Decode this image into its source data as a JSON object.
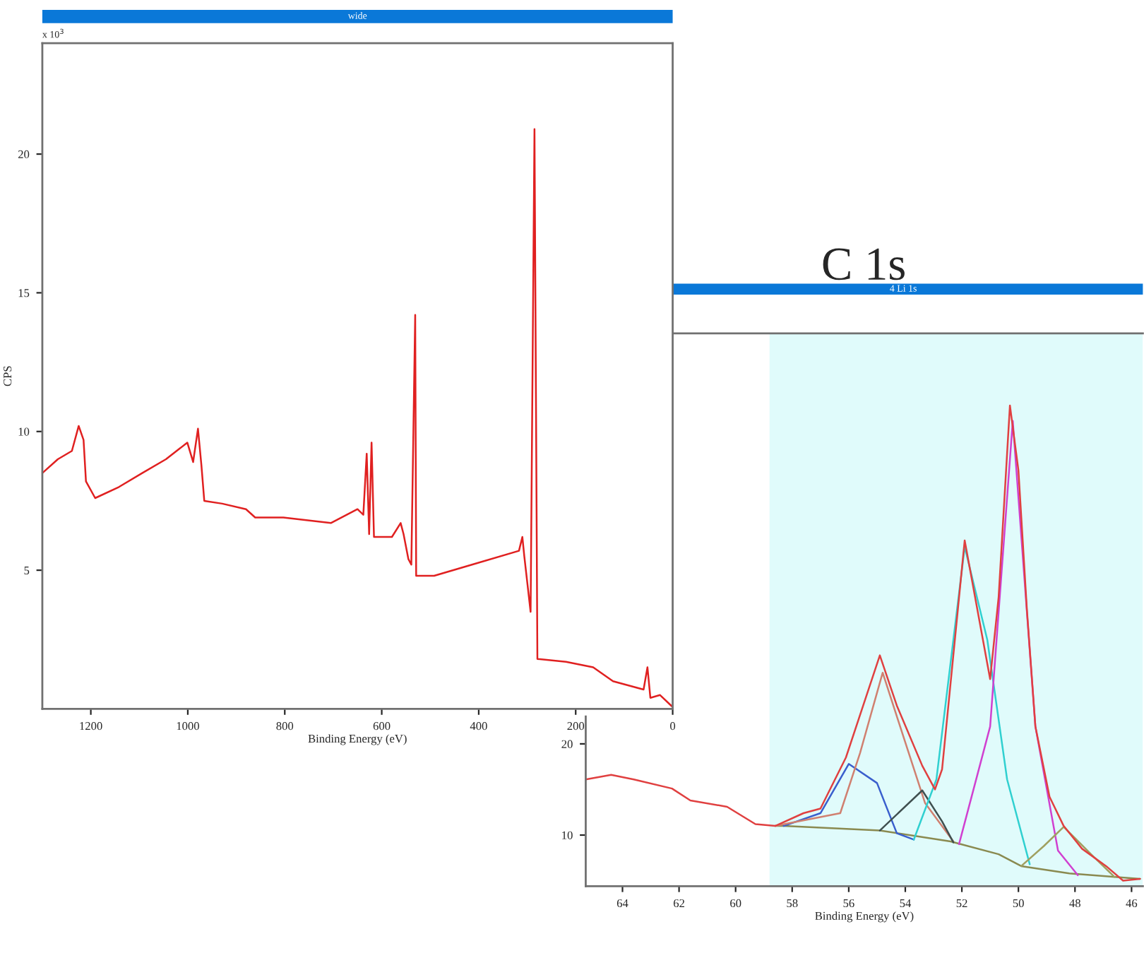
{
  "chart_data": [
    {
      "type": "line",
      "title": "wide",
      "xlabel": "Binding Energy (eV)",
      "ylabel": "CPS",
      "annotations": [
        "x 10$^{3}$"
      ],
      "grid": false,
      "legend": false,
      "line_style": "solid",
      "marker": "none",
      "xlim": [
        1300,
        0
      ],
      "xticks": [
        1200,
        1000,
        800,
        600,
        400,
        200,
        0
      ],
      "ylim": [
        0,
        24
      ],
      "yticks": [
        5,
        10,
        15,
        20
      ],
      "series": [
        {
          "color": "#e02020",
          "x": [
            1300,
            1268,
            1239,
            1225,
            1215,
            1210,
            1191,
            1142,
            1094,
            1045,
            1001,
            989,
            979,
            972,
            966,
            929,
            880,
            861,
            803,
            705,
            650,
            638,
            631,
            626,
            621,
            616,
            579,
            561,
            555,
            545,
            539,
            535,
            531,
            529,
            492,
            414,
            317,
            310,
            306,
            293,
            285,
            279,
            220,
            164,
            123,
            60,
            52,
            46,
            26,
            2
          ],
          "values": [
            8.5,
            9.0,
            9.3,
            10.2,
            9.7,
            8.2,
            7.6,
            8.0,
            8.5,
            9.0,
            9.6,
            8.9,
            10.1,
            8.8,
            7.5,
            7.4,
            7.2,
            6.9,
            6.9,
            6.7,
            7.2,
            7.0,
            9.2,
            6.3,
            9.6,
            6.2,
            6.2,
            6.7,
            6.3,
            5.4,
            5.2,
            9.7,
            14.2,
            4.8,
            4.8,
            5.2,
            5.7,
            6.2,
            5.5,
            3.5,
            20.9,
            1.8,
            1.7,
            1.5,
            1.0,
            0.7,
            1.5,
            0.4,
            0.5,
            0.1
          ]
        }
      ]
    },
    {
      "type": "line",
      "title": "4 Li 1s",
      "xlabel": "Binding Energy (eV)",
      "annotations": [
        "C 1s"
      ],
      "grid": false,
      "legend": false,
      "line_style": "solid",
      "marker": "none",
      "xlim": [
        65.3,
        45.6
      ],
      "xticks": [
        64,
        62,
        60,
        58,
        56,
        54,
        52,
        50,
        48,
        46
      ],
      "ylim": [
        4.4,
        65
      ],
      "yticks": [
        10,
        20
      ],
      "bands": [
        {
          "axis": "x",
          "from": 58.8,
          "to": 45.6,
          "color": "#e0fbfb"
        }
      ],
      "series": [
        {
          "color": "#8a8a50",
          "x": [
            58.6,
            58.3,
            54.9,
            52.4,
            50.7,
            49.9,
            48.2,
            45.7
          ],
          "values": [
            11.0,
            11.0,
            10.5,
            9.3,
            7.9,
            6.6,
            5.8,
            5.2
          ]
        },
        {
          "color": "#3a5fcd",
          "x": [
            58.3,
            57.0,
            56.0,
            55.0,
            54.3,
            53.7
          ],
          "values": [
            11.0,
            12.4,
            17.8,
            15.7,
            10.2,
            9.5
          ]
        },
        {
          "color": "#d08070",
          "x": [
            58.6,
            56.3,
            55.6,
            54.8,
            53.9,
            53.3,
            52.3
          ],
          "values": [
            11.0,
            12.4,
            19.0,
            27.8,
            19.2,
            13.5,
            9.3
          ]
        },
        {
          "color": "#405050",
          "x": [
            54.9,
            53.4,
            52.7,
            52.3
          ],
          "values": [
            10.5,
            14.9,
            11.5,
            9.2
          ]
        },
        {
          "color": "#30d0d0",
          "x": [
            53.7,
            52.9,
            51.9,
            51.1,
            50.4,
            49.6
          ],
          "values": [
            9.5,
            16.1,
            41.6,
            31.4,
            16.1,
            6.8
          ]
        },
        {
          "color": "#d040d0",
          "x": [
            52.1,
            51.0,
            50.2,
            49.4,
            48.6,
            47.9
          ],
          "values": [
            9.0,
            21.9,
            55.4,
            21.9,
            8.3,
            5.6
          ]
        },
        {
          "color": "#a0a060",
          "x": [
            49.9,
            49.1,
            48.4,
            47.4,
            46.6
          ],
          "values": [
            6.6,
            8.8,
            10.9,
            7.8,
            5.4
          ]
        },
        {
          "color": "#e04040",
          "x": [
            65.3,
            64.4,
            63.6,
            62.25,
            61.6,
            60.3,
            59.3,
            58.6,
            57.6,
            57.0,
            56.1,
            54.9,
            54.3,
            53.4,
            52.95,
            52.7,
            51.9,
            51.0,
            50.7,
            50.3,
            50.0,
            49.7,
            49.4,
            48.9,
            48.4,
            47.75,
            46.9,
            46.3,
            45.7
          ],
          "values": [
            16.1,
            16.6,
            16.1,
            15.1,
            13.8,
            13.1,
            11.2,
            11.0,
            12.4,
            12.9,
            18.5,
            29.7,
            24.2,
            17.6,
            15.0,
            17.2,
            42.3,
            27.1,
            36.1,
            57.1,
            50.0,
            34.7,
            21.9,
            14.2,
            11.0,
            8.5,
            6.6,
            5.0,
            5.2
          ]
        }
      ]
    }
  ]
}
